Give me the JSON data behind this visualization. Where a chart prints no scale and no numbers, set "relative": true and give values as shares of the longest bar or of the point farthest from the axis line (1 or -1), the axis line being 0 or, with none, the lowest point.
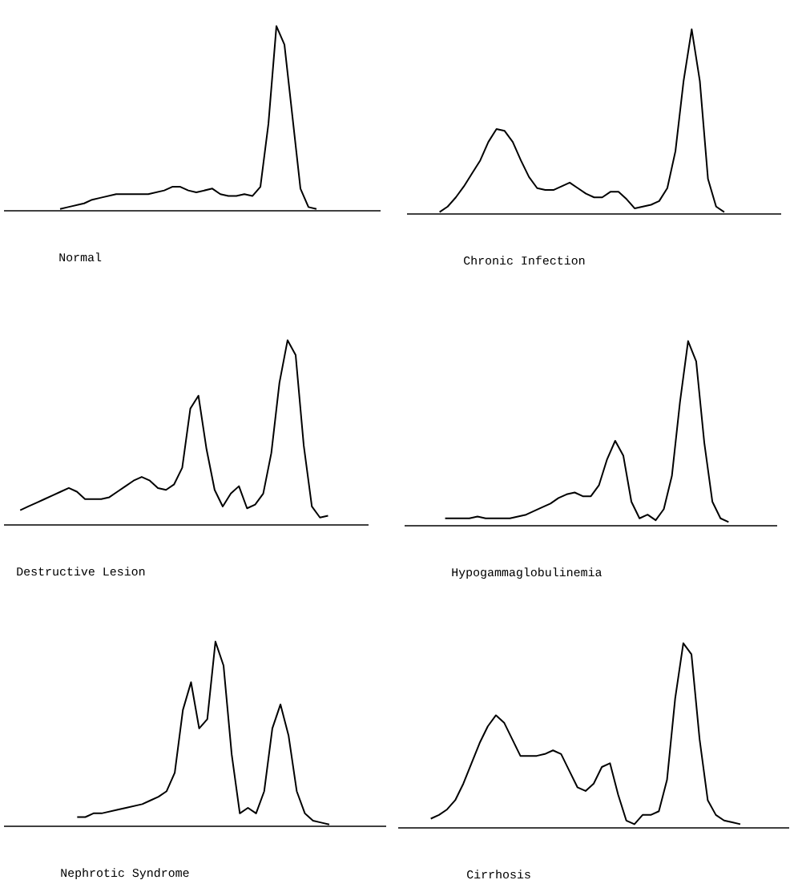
{
  "chart_data": [
    {
      "type": "line",
      "relative": true,
      "color": "#000000",
      "title": "Normal",
      "categories": [
        null,
        null,
        null,
        null,
        null,
        null,
        null,
        null,
        null,
        null,
        null,
        null,
        null,
        null,
        null,
        null,
        null,
        null,
        null,
        null,
        null,
        null,
        null,
        null,
        null,
        null,
        null,
        null,
        null,
        null,
        null,
        null,
        null
      ],
      "values": [
        0.01,
        0.02,
        0.03,
        0.04,
        0.06,
        0.07,
        0.08,
        0.09,
        0.09,
        0.09,
        0.09,
        0.09,
        0.1,
        0.11,
        0.13,
        0.13,
        0.11,
        0.1,
        0.11,
        0.12,
        0.09,
        0.08,
        0.08,
        0.09,
        0.08,
        0.13,
        0.47,
        1.0,
        0.9,
        0.51,
        0.12,
        0.02,
        0.01
      ]
    },
    {
      "type": "line",
      "relative": true,
      "color": "#000000",
      "title": "Chronic Infection",
      "categories": [
        null,
        null,
        null,
        null,
        null,
        null,
        null,
        null,
        null,
        null,
        null,
        null,
        null,
        null,
        null,
        null,
        null,
        null,
        null,
        null,
        null,
        null,
        null,
        null,
        null,
        null,
        null,
        null,
        null,
        null,
        null,
        null,
        null,
        null,
        null,
        null
      ],
      "values": [
        0.01,
        0.04,
        0.09,
        0.15,
        0.22,
        0.29,
        0.39,
        0.46,
        0.45,
        0.39,
        0.29,
        0.2,
        0.14,
        0.13,
        0.13,
        0.15,
        0.17,
        0.14,
        0.11,
        0.09,
        0.09,
        0.12,
        0.12,
        0.08,
        0.03,
        0.04,
        0.05,
        0.07,
        0.14,
        0.34,
        0.72,
        1.0,
        0.72,
        0.19,
        0.04,
        0.01
      ]
    },
    {
      "type": "line",
      "relative": true,
      "color": "#000000",
      "title": "Destructive Lesion",
      "categories": [
        null,
        null,
        null,
        null,
        null,
        null,
        null,
        null,
        null,
        null,
        null,
        null,
        null,
        null,
        null,
        null,
        null,
        null,
        null,
        null,
        null,
        null,
        null,
        null,
        null,
        null,
        null,
        null,
        null,
        null,
        null,
        null,
        null,
        null,
        null,
        null,
        null,
        null,
        null
      ],
      "values": [
        0.08,
        0.1,
        0.12,
        0.14,
        0.16,
        0.18,
        0.2,
        0.18,
        0.14,
        0.14,
        0.14,
        0.15,
        0.18,
        0.21,
        0.24,
        0.26,
        0.24,
        0.2,
        0.19,
        0.22,
        0.31,
        0.63,
        0.7,
        0.41,
        0.19,
        0.1,
        0.17,
        0.21,
        0.09,
        0.11,
        0.17,
        0.39,
        0.77,
        1.0,
        0.92,
        0.43,
        0.1,
        0.04,
        0.05
      ]
    },
    {
      "type": "line",
      "relative": true,
      "color": "#000000",
      "title": "Hypogammaglobulinemia",
      "categories": [
        null,
        null,
        null,
        null,
        null,
        null,
        null,
        null,
        null,
        null,
        null,
        null,
        null,
        null,
        null,
        null,
        null,
        null,
        null,
        null,
        null,
        null,
        null,
        null,
        null,
        null,
        null,
        null,
        null,
        null,
        null,
        null,
        null,
        null,
        null,
        null
      ],
      "values": [
        0.04,
        0.04,
        0.04,
        0.04,
        0.05,
        0.04,
        0.04,
        0.04,
        0.04,
        0.05,
        0.06,
        0.08,
        0.1,
        0.12,
        0.15,
        0.17,
        0.18,
        0.16,
        0.16,
        0.22,
        0.36,
        0.46,
        0.38,
        0.13,
        0.04,
        0.06,
        0.03,
        0.09,
        0.27,
        0.67,
        1.0,
        0.89,
        0.45,
        0.13,
        0.04,
        0.02
      ]
    },
    {
      "type": "line",
      "relative": true,
      "color": "#000000",
      "title": "Nephrotic Syndrome",
      "categories": [
        null,
        null,
        null,
        null,
        null,
        null,
        null,
        null,
        null,
        null,
        null,
        null,
        null,
        null,
        null,
        null,
        null,
        null,
        null,
        null,
        null,
        null,
        null,
        null,
        null,
        null,
        null,
        null,
        null,
        null,
        null,
        null
      ],
      "values": [
        0.05,
        0.05,
        0.07,
        0.07,
        0.08,
        0.09,
        0.1,
        0.11,
        0.12,
        0.14,
        0.16,
        0.19,
        0.29,
        0.63,
        0.78,
        0.53,
        0.58,
        1.0,
        0.87,
        0.39,
        0.07,
        0.1,
        0.07,
        0.19,
        0.53,
        0.66,
        0.49,
        0.19,
        0.07,
        0.03,
        0.02,
        0.01
      ]
    },
    {
      "type": "line",
      "relative": true,
      "color": "#000000",
      "title": "Cirrhosis",
      "categories": [
        null,
        null,
        null,
        null,
        null,
        null,
        null,
        null,
        null,
        null,
        null,
        null,
        null,
        null,
        null,
        null,
        null,
        null,
        null,
        null,
        null,
        null,
        null,
        null,
        null,
        null,
        null,
        null,
        null,
        null,
        null,
        null,
        null,
        null,
        null,
        null,
        null,
        null,
        null
      ],
      "values": [
        0.05,
        0.07,
        0.1,
        0.15,
        0.24,
        0.35,
        0.46,
        0.55,
        0.61,
        0.57,
        0.48,
        0.39,
        0.39,
        0.39,
        0.4,
        0.42,
        0.4,
        0.31,
        0.22,
        0.2,
        0.24,
        0.33,
        0.35,
        0.18,
        0.04,
        0.02,
        0.07,
        0.07,
        0.09,
        0.26,
        0.7,
        1.0,
        0.94,
        0.48,
        0.15,
        0.07,
        0.04,
        0.03,
        0.02
      ]
    }
  ]
}
